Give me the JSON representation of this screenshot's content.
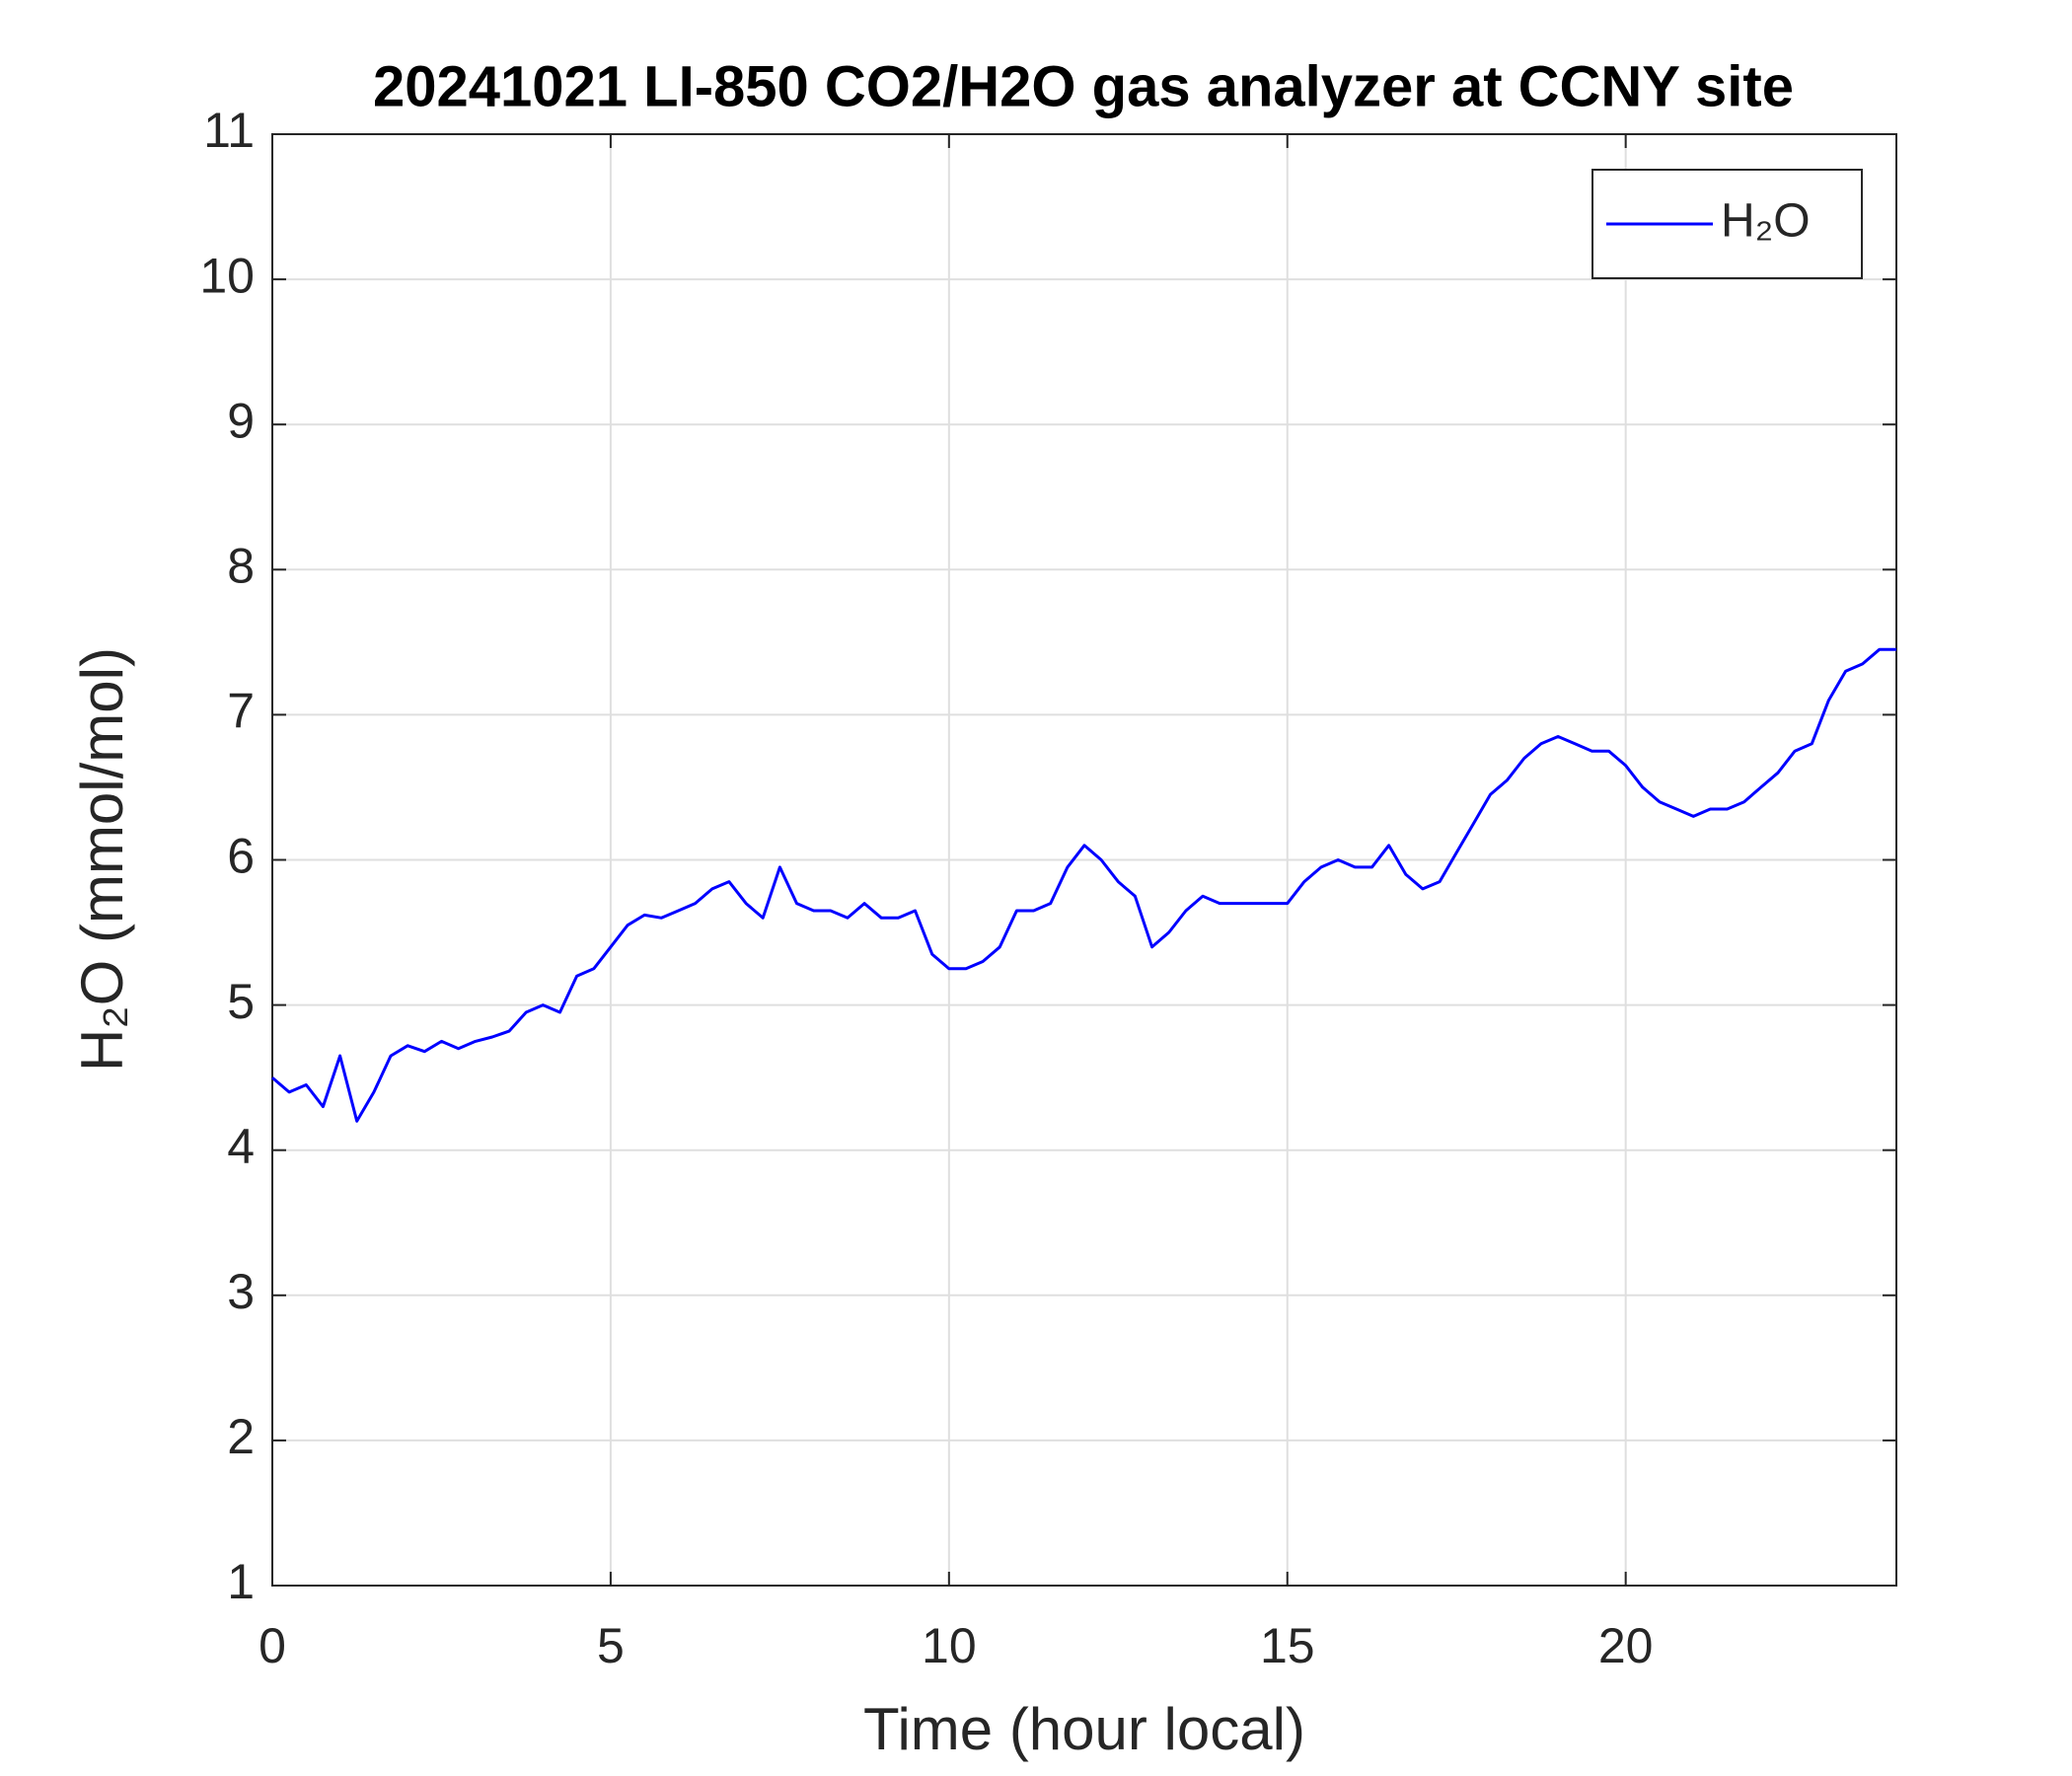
{
  "chart_data": {
    "type": "line",
    "title": "20241021 LI-850 CO2/H2O gas analyzer at CCNY site",
    "xlabel": "Time (hour local)",
    "ylabel": "H₂O (mmol/mol)",
    "x": [
      0,
      0.25,
      0.5,
      0.75,
      1,
      1.25,
      1.5,
      1.75,
      2,
      2.25,
      2.5,
      2.75,
      3,
      3.25,
      3.5,
      3.75,
      4,
      4.25,
      4.5,
      4.75,
      5,
      5.25,
      5.5,
      5.75,
      6,
      6.25,
      6.5,
      6.75,
      7,
      7.25,
      7.5,
      7.75,
      8,
      8.25,
      8.5,
      8.75,
      9,
      9.25,
      9.5,
      9.75,
      10,
      10.25,
      10.5,
      10.75,
      11,
      11.25,
      11.5,
      11.75,
      12,
      12.25,
      12.5,
      12.75,
      13,
      13.25,
      13.5,
      13.75,
      14,
      14.25,
      14.5,
      14.75,
      15,
      15.25,
      15.5,
      15.75,
      16,
      16.25,
      16.5,
      16.75,
      17,
      17.25,
      17.5,
      17.75,
      18,
      18.25,
      18.5,
      18.75,
      19,
      19.25,
      19.5,
      19.75,
      20,
      20.25,
      20.5,
      20.75,
      21,
      21.25,
      21.5,
      21.75,
      22,
      22.25,
      22.5,
      22.75,
      23,
      23.25,
      23.5,
      23.75,
      24
    ],
    "series": [
      {
        "name": "H₂O",
        "color": "#0000ff",
        "values": [
          4.5,
          4.4,
          4.45,
          4.3,
          4.65,
          4.2,
          4.4,
          4.65,
          4.72,
          4.68,
          4.75,
          4.7,
          4.75,
          4.78,
          4.82,
          4.95,
          5.0,
          4.95,
          5.2,
          5.25,
          5.4,
          5.55,
          5.62,
          5.6,
          5.65,
          5.7,
          5.8,
          5.85,
          5.7,
          5.6,
          5.95,
          5.7,
          5.65,
          5.65,
          5.6,
          5.7,
          5.6,
          5.6,
          5.65,
          5.35,
          5.25,
          5.25,
          5.3,
          5.4,
          5.65,
          5.65,
          5.7,
          5.95,
          6.1,
          6.0,
          5.85,
          5.75,
          5.4,
          5.5,
          5.65,
          5.75,
          5.7,
          5.7,
          5.7,
          5.7,
          5.7,
          5.85,
          5.95,
          6.0,
          5.95,
          5.95,
          6.1,
          5.9,
          5.8,
          5.85,
          6.05,
          6.25,
          6.45,
          6.55,
          6.7,
          6.8,
          6.85,
          6.8,
          6.75,
          6.75,
          6.65,
          6.5,
          6.4,
          6.35,
          6.3,
          6.35,
          6.35,
          6.4,
          6.5,
          6.6,
          6.75,
          6.8,
          7.1,
          7.3,
          7.35,
          7.45,
          7.45
        ]
      }
    ],
    "xlim": [
      0,
      24
    ],
    "xticks": [
      0,
      5,
      10,
      15,
      20
    ],
    "ylim": [
      1,
      11
    ],
    "yticks": [
      1,
      2,
      3,
      4,
      5,
      6,
      7,
      8,
      9,
      10,
      11
    ],
    "grid": true,
    "legend": "upper right"
  }
}
